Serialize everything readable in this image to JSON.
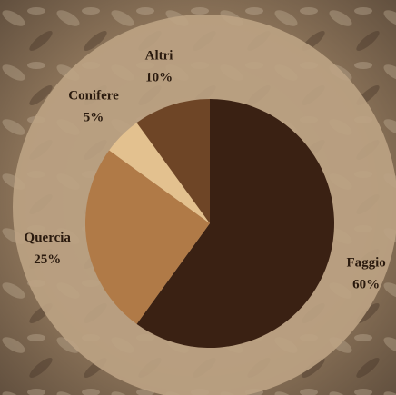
{
  "chart_data": {
    "type": "pie",
    "categories": [
      "Faggio",
      "Quercia",
      "Conifere",
      "Altri"
    ],
    "values": [
      60,
      25,
      5,
      10
    ],
    "value_labels": [
      "60%",
      "25%",
      "5%",
      "10%"
    ],
    "colors": [
      "#3a2113",
      "#b07a47",
      "#e3c18f",
      "#6e4526"
    ]
  }
}
